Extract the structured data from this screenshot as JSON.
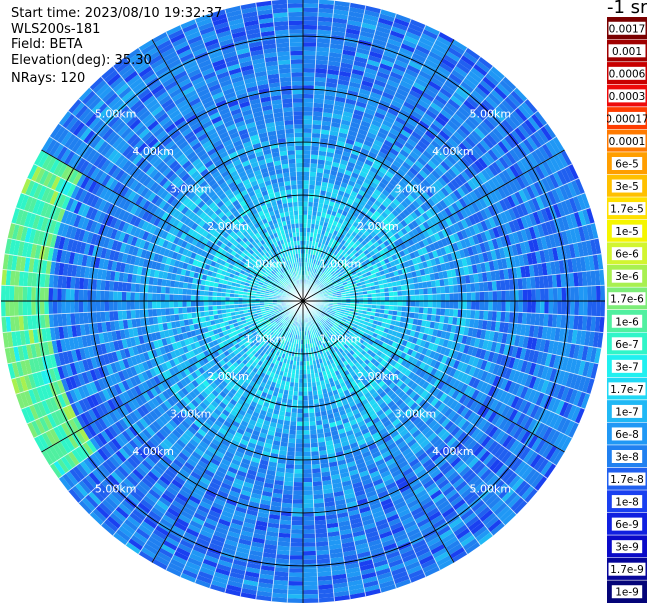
{
  "header": {
    "start_time": "Start time: 2023/08/10 19:32:37",
    "instrument": "WLS200s-181",
    "field": "Field: BETA",
    "elevation": "Elevation(deg): 35.30",
    "nrays": "NRays: 120"
  },
  "colorbar": {
    "title": "-1 sr",
    "labels": [
      "0.0017",
      "0.001",
      "0.0006",
      "0.0003",
      "0.00017",
      "0.0001",
      "6e-5",
      "3e-5",
      "1.7e-5",
      "1e-5",
      "6e-6",
      "3e-6",
      "1.7e-6",
      "1e-6",
      "6e-7",
      "3e-7",
      "1.7e-7",
      "1e-7",
      "6e-8",
      "3e-8",
      "1.7e-8",
      "1e-8",
      "6e-9",
      "3e-9",
      "1.7e-9",
      "1e-9"
    ],
    "colors": [
      "#7a0000",
      "#a00000",
      "#c80000",
      "#ee0a0a",
      "#ff3c00",
      "#ff7a00",
      "#ff9e00",
      "#ffc000",
      "#ffe000",
      "#f5f500",
      "#d2f530",
      "#a8f050",
      "#7ded78",
      "#50f0a0",
      "#30f5c8",
      "#20f0f0",
      "#20d8f5",
      "#20b8f5",
      "#2098f5",
      "#2080f0",
      "#2060f0",
      "#1a40f0",
      "#1020e0",
      "#0a0ac8",
      "#06069a",
      "#040478"
    ]
  },
  "range_labels": [
    "1.00km",
    "2.00km",
    "3.00km",
    "4.00km",
    "5.00km"
  ],
  "chart_data": {
    "type": "heatmap",
    "title": "",
    "field": "BETA",
    "units": "sr-1 (colorbar header shows \"-1 sr\")",
    "elevation_deg": 35.3,
    "n_rays": 120,
    "range_rings_km": [
      1,
      2,
      3,
      4,
      5
    ],
    "max_range_km": 5.0,
    "colorbar_levels": [
      0.0017,
      0.001,
      0.0006,
      0.0003,
      0.00017,
      0.0001,
      6e-05,
      3e-05,
      1.7e-05,
      1e-05,
      6e-06,
      3e-06,
      1.7e-06,
      1e-06,
      6e-07,
      3e-07,
      1.7e-07,
      1e-07,
      6e-08,
      3e-08,
      1.7e-08,
      1e-08,
      6e-09,
      3e-09,
      1.7e-09,
      1e-09
    ],
    "typical_beta_by_range": [
      {
        "range_km": 0.5,
        "beta": 1.7e-07
      },
      {
        "range_km": 1.0,
        "beta": 1.7e-07
      },
      {
        "range_km": 2.0,
        "beta": 1e-07
      },
      {
        "range_km": 3.0,
        "beta": 6e-08
      },
      {
        "range_km": 4.0,
        "beta": 3e-08
      },
      {
        "range_km": 5.0,
        "beta": 3e-08
      }
    ],
    "high_sector": {
      "azimuth_deg_from": 235,
      "azimuth_deg_to": 300,
      "range_km_from": 4.8,
      "range_km_to": 5.7,
      "beta": 1e-06
    }
  }
}
